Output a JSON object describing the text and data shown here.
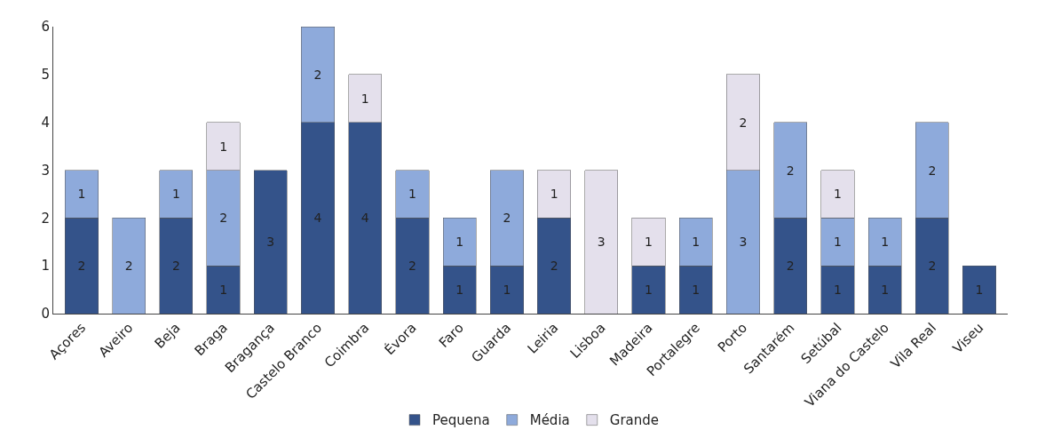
{
  "chart_data": {
    "type": "bar",
    "stacked": true,
    "categories": [
      "Açores",
      "Aveiro",
      "Beja",
      "Braga",
      "Bragança",
      "Castelo Branco",
      "Coimbra",
      "Évora",
      "Faro",
      "Guarda",
      "Leiria",
      "Lisboa",
      "Madeira",
      "Portalegre",
      "Porto",
      "Santarém",
      "Setúbal",
      "Viana do Castelo",
      "Vila Real",
      "Viseu"
    ],
    "series": [
      {
        "name": "Pequena",
        "color": "#34538a",
        "values": [
          2,
          null,
          2,
          1,
          3,
          4,
          4,
          2,
          1,
          1,
          2,
          null,
          1,
          1,
          null,
          2,
          1,
          1,
          2,
          1
        ]
      },
      {
        "name": "Média",
        "color": "#8eaadb",
        "values": [
          1,
          2,
          1,
          2,
          null,
          2,
          null,
          1,
          1,
          2,
          null,
          null,
          null,
          1,
          3,
          2,
          1,
          1,
          2,
          null
        ]
      },
      {
        "name": "Grande",
        "color": "#e4e0ec",
        "values": [
          null,
          null,
          null,
          1,
          null,
          null,
          1,
          null,
          null,
          null,
          1,
          3,
          1,
          null,
          2,
          null,
          1,
          null,
          null,
          null
        ]
      }
    ],
    "ylim": [
      0,
      6
    ],
    "yticks": [
      0,
      1,
      2,
      3,
      4,
      5,
      6
    ],
    "legend": "bottom",
    "data_labels": true
  }
}
